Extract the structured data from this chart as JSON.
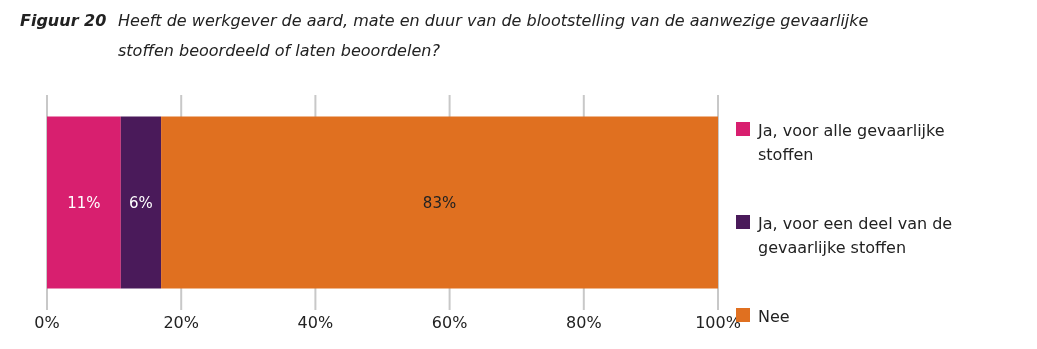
{
  "chart_data": {
    "type": "bar",
    "orientation": "horizontal",
    "stacked": true,
    "title": "Figuur 20",
    "subtitle": "Heeft de werkgever de aard, mate en duur van de blootstelling van de aanwezige gevaarlijke stoffen beoordeeld of laten beoordelen?",
    "categories": [
      null
    ],
    "series": [
      {
        "name": "Ja, voor alle gevaarlijke stoffen",
        "color": "#d81f6f",
        "values": [
          11
        ],
        "value_labels": [
          "11%"
        ]
      },
      {
        "name": "Ja, voor een deel van de gevaarlijke stoffen",
        "color": "#4a1a5a",
        "values": [
          6
        ],
        "value_labels": [
          "6%"
        ]
      },
      {
        "name": "Nee",
        "color": "#e07020",
        "values": [
          83
        ],
        "value_labels": [
          "83%"
        ]
      }
    ],
    "xlim": [
      0,
      100
    ],
    "xticks": [
      {
        "value": 0,
        "label": "0%"
      },
      {
        "value": 20,
        "label": "20%"
      },
      {
        "value": 40,
        "label": "40%"
      },
      {
        "value": 60,
        "label": "60%"
      },
      {
        "value": 80,
        "label": "80%"
      },
      {
        "value": 100,
        "label": "100%"
      }
    ],
    "grid": "x",
    "legend": "right"
  }
}
